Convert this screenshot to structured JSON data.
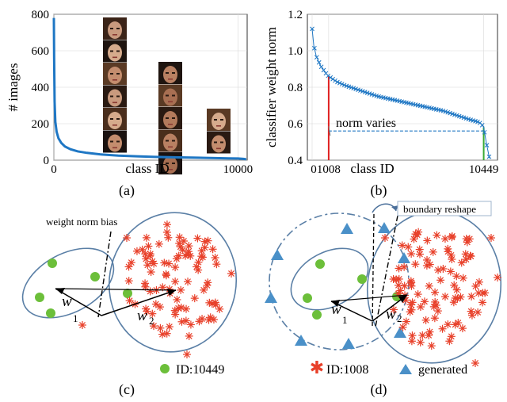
{
  "chart_data": [
    {
      "panel": "a",
      "type": "line",
      "caption": "(a)",
      "xlabel": "class ID",
      "ylabel": "# images",
      "xlim": [
        0,
        10500
      ],
      "ylim": [
        0,
        800
      ],
      "xticks": [
        0,
        10000
      ],
      "yticks": [
        0,
        200,
        400,
        600,
        800
      ],
      "color": "#1f77c4",
      "x": [
        0,
        15,
        40,
        80,
        150,
        250,
        400,
        600,
        900,
        1300,
        1800,
        2500,
        3500,
        4500,
        5500,
        6500,
        7500,
        8500,
        9500,
        10000,
        10300,
        10449
      ],
      "y": [
        780,
        560,
        320,
        210,
        155,
        120,
        95,
        75,
        60,
        48,
        40,
        32,
        25,
        21,
        18,
        16,
        14,
        12,
        10,
        9,
        7,
        5
      ],
      "face_thumbnails": [
        {
          "name": "face-col1",
          "count": 6
        },
        {
          "name": "face-col2",
          "count": 5
        },
        {
          "name": "face-col3",
          "count": 2
        }
      ]
    },
    {
      "panel": "b",
      "type": "line",
      "caption": "(b)",
      "xlabel": "class ID",
      "ylabel": "classifier weight norm",
      "xlim": [
        0,
        11000
      ],
      "ylim": [
        0.4,
        1.2
      ],
      "xticks": [
        0,
        1008,
        10449
      ],
      "yticks": [
        0.4,
        0.6,
        0.8,
        1.0,
        1.2
      ],
      "color": "#1f77c4",
      "marker": "x",
      "x": [
        0,
        100,
        250,
        500,
        800,
        1008,
        1500,
        2000,
        3000,
        4000,
        5000,
        6000,
        7000,
        8000,
        9000,
        9700,
        10100,
        10300,
        10449,
        10600,
        10800
      ],
      "y": [
        1.12,
        1.03,
        0.97,
        0.92,
        0.88,
        0.86,
        0.83,
        0.81,
        0.78,
        0.75,
        0.73,
        0.71,
        0.69,
        0.67,
        0.64,
        0.62,
        0.61,
        0.6,
        0.58,
        0.5,
        0.41
      ],
      "annotations": [
        {
          "text": "norm varies",
          "color": "#000000"
        },
        {
          "marker_x": 1008,
          "marker_y": 0.86,
          "color": "#e02020"
        },
        {
          "marker_x": 10449,
          "marker_y": 0.58,
          "color": "#3aaa35"
        },
        {
          "dashed_y": 0.56,
          "color": "#1f77c4"
        }
      ]
    }
  ],
  "diagrams": {
    "c": {
      "caption": "(c)",
      "title": "weight norm bias",
      "w1_label": "w",
      "w1_sub": "1",
      "w2_label": "w",
      "w2_sub": "2",
      "legend": [
        {
          "text": "ID:10449",
          "marker": "green-dot",
          "color": "#6cbf3a"
        }
      ]
    },
    "d": {
      "caption": "(d)",
      "title": "boundary reshape",
      "w1_label": "w",
      "w1_sub": "1",
      "w2_label": "w",
      "w2_sub": "2",
      "legend": [
        {
          "text": "ID:1008",
          "marker": "red-star",
          "color": "#e8402a"
        },
        {
          "text": "generated",
          "marker": "blue-triangle",
          "color": "#4a90c8"
        }
      ]
    }
  }
}
